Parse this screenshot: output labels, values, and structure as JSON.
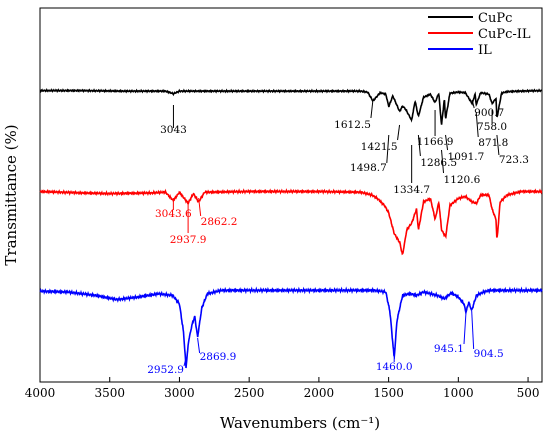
{
  "chart_data": {
    "type": "line",
    "xlabel": "Wavenumbers (cm⁻¹)",
    "ylabel": "Transmittance (%)",
    "xlim": [
      4000,
      400
    ],
    "x_ticks": [
      4000,
      3500,
      3000,
      2500,
      2000,
      1500,
      1000,
      500
    ],
    "x_tick_labels": [
      "4000",
      "3500",
      "3000",
      "2500",
      "2000",
      "1500",
      "1000",
      "500"
    ],
    "y_ticks_shown": false,
    "legend_position": "top-right",
    "series": [
      {
        "name": "CuPc",
        "color": "#000000",
        "baseline": 0.05,
        "points": [
          [
            4000,
            0.05
          ],
          [
            3700,
            0.05
          ],
          [
            3400,
            0.06
          ],
          [
            3100,
            0.06
          ],
          [
            3043,
            0.11
          ],
          [
            3000,
            0.06
          ],
          [
            2500,
            0.06
          ],
          [
            2000,
            0.06
          ],
          [
            1700,
            0.06
          ],
          [
            1650,
            0.08
          ],
          [
            1612.5,
            0.25
          ],
          [
            1560,
            0.09
          ],
          [
            1520,
            0.12
          ],
          [
            1498.7,
            0.36
          ],
          [
            1470,
            0.15
          ],
          [
            1421.5,
            0.45
          ],
          [
            1400,
            0.35
          ],
          [
            1380,
            0.4
          ],
          [
            1334.7,
            0.62
          ],
          [
            1310,
            0.25
          ],
          [
            1286.5,
            0.55
          ],
          [
            1250,
            0.18
          ],
          [
            1200,
            0.12
          ],
          [
            1166.9,
            0.28
          ],
          [
            1140,
            0.1
          ],
          [
            1120.6,
            0.72
          ],
          [
            1100,
            0.2
          ],
          [
            1091.7,
            0.6
          ],
          [
            1060,
            0.1
          ],
          [
            1000,
            0.08
          ],
          [
            950,
            0.09
          ],
          [
            900.7,
            0.3
          ],
          [
            880,
            0.12
          ],
          [
            871.8,
            0.32
          ],
          [
            840,
            0.09
          ],
          [
            780,
            0.12
          ],
          [
            758.0,
            0.3
          ],
          [
            730,
            0.2
          ],
          [
            723.3,
            0.58
          ],
          [
            690,
            0.1
          ],
          [
            650,
            0.07
          ],
          [
            550,
            0.06
          ],
          [
            400,
            0.05
          ]
        ]
      },
      {
        "name": "CuPc-IL",
        "color": "#ff0000",
        "baseline": 0.05,
        "points": [
          [
            4000,
            0.05
          ],
          [
            3700,
            0.07
          ],
          [
            3500,
            0.08
          ],
          [
            3200,
            0.07
          ],
          [
            3100,
            0.06
          ],
          [
            3043.6,
            0.18
          ],
          [
            3000,
            0.06
          ],
          [
            2937.9,
            0.22
          ],
          [
            2900,
            0.08
          ],
          [
            2862.2,
            0.2
          ],
          [
            2820,
            0.06
          ],
          [
            2500,
            0.05
          ],
          [
            2000,
            0.05
          ],
          [
            1700,
            0.06
          ],
          [
            1620,
            0.1
          ],
          [
            1580,
            0.15
          ],
          [
            1530,
            0.25
          ],
          [
            1500,
            0.35
          ],
          [
            1460,
            0.65
          ],
          [
            1420,
            0.78
          ],
          [
            1400,
            0.96
          ],
          [
            1370,
            0.6
          ],
          [
            1334,
            0.5
          ],
          [
            1300,
            0.3
          ],
          [
            1286,
            0.6
          ],
          [
            1250,
            0.2
          ],
          [
            1200,
            0.15
          ],
          [
            1166,
            0.45
          ],
          [
            1140,
            0.2
          ],
          [
            1120,
            0.6
          ],
          [
            1091,
            0.7
          ],
          [
            1060,
            0.25
          ],
          [
            1000,
            0.15
          ],
          [
            950,
            0.12
          ],
          [
            900,
            0.2
          ],
          [
            870,
            0.22
          ],
          [
            840,
            0.1
          ],
          [
            780,
            0.1
          ],
          [
            758,
            0.3
          ],
          [
            730,
            0.45
          ],
          [
            723,
            0.75
          ],
          [
            700,
            0.2
          ],
          [
            650,
            0.1
          ],
          [
            550,
            0.05
          ],
          [
            400,
            0.05
          ]
        ]
      },
      {
        "name": "IL",
        "color": "#0000ff",
        "baseline": 0.05,
        "points": [
          [
            4000,
            0.05
          ],
          [
            3800,
            0.06
          ],
          [
            3600,
            0.1
          ],
          [
            3450,
            0.15
          ],
          [
            3300,
            0.12
          ],
          [
            3150,
            0.08
          ],
          [
            3050,
            0.1
          ],
          [
            3000,
            0.2
          ],
          [
            2970,
            0.55
          ],
          [
            2952.9,
            0.96
          ],
          [
            2935,
            0.65
          ],
          [
            2910,
            0.45
          ],
          [
            2890,
            0.35
          ],
          [
            2869.9,
            0.6
          ],
          [
            2840,
            0.25
          ],
          [
            2800,
            0.08
          ],
          [
            2700,
            0.04
          ],
          [
            2500,
            0.04
          ],
          [
            2000,
            0.04
          ],
          [
            1600,
            0.04
          ],
          [
            1520,
            0.06
          ],
          [
            1490,
            0.3
          ],
          [
            1460,
            0.85
          ],
          [
            1440,
            0.4
          ],
          [
            1400,
            0.1
          ],
          [
            1350,
            0.08
          ],
          [
            1300,
            0.1
          ],
          [
            1250,
            0.06
          ],
          [
            1200,
            0.08
          ],
          [
            1150,
            0.1
          ],
          [
            1100,
            0.14
          ],
          [
            1050,
            0.07
          ],
          [
            1000,
            0.12
          ],
          [
            960,
            0.2
          ],
          [
            945.1,
            0.3
          ],
          [
            925,
            0.18
          ],
          [
            904.5,
            0.28
          ],
          [
            870,
            0.1
          ],
          [
            820,
            0.06
          ],
          [
            770,
            0.04
          ],
          [
            700,
            0.04
          ],
          [
            400,
            0.04
          ]
        ]
      }
    ],
    "annotations": [
      {
        "text": "3043",
        "series": "CuPc",
        "x": 3043
      },
      {
        "text": "1612.5",
        "series": "CuPc",
        "x": 1612.5
      },
      {
        "text": "1421.5",
        "series": "CuPc",
        "x": 1421.5
      },
      {
        "text": "1498.7",
        "series": "CuPc",
        "x": 1498.7
      },
      {
        "text": "1334.7",
        "series": "CuPc",
        "x": 1334.7
      },
      {
        "text": "1286.5",
        "series": "CuPc",
        "x": 1286.5
      },
      {
        "text": "1166.9",
        "series": "CuPc",
        "x": 1166.9
      },
      {
        "text": "1120.6",
        "series": "CuPc",
        "x": 1120.6
      },
      {
        "text": "1091.7",
        "series": "CuPc",
        "x": 1091.7
      },
      {
        "text": "900.7",
        "series": "CuPc",
        "x": 900.7
      },
      {
        "text": "871.8",
        "series": "CuPc",
        "x": 871.8
      },
      {
        "text": "758.0",
        "series": "CuPc",
        "x": 758.0
      },
      {
        "text": "723.3",
        "series": "CuPc",
        "x": 723.3
      },
      {
        "text": "3043.6",
        "series": "CuPc-IL",
        "x": 3043.6
      },
      {
        "text": "2937.9",
        "series": "CuPc-IL",
        "x": 2937.9
      },
      {
        "text": "2862.2",
        "series": "CuPc-IL",
        "x": 2862.2
      },
      {
        "text": "2952.9",
        "series": "IL",
        "x": 2952.9
      },
      {
        "text": "2869.9",
        "series": "IL",
        "x": 2869.9
      },
      {
        "text": "1460.0",
        "series": "IL",
        "x": 1460.0
      },
      {
        "text": "945.1",
        "series": "IL",
        "x": 945.1
      },
      {
        "text": "904.5",
        "series": "IL",
        "x": 904.5
      }
    ]
  }
}
